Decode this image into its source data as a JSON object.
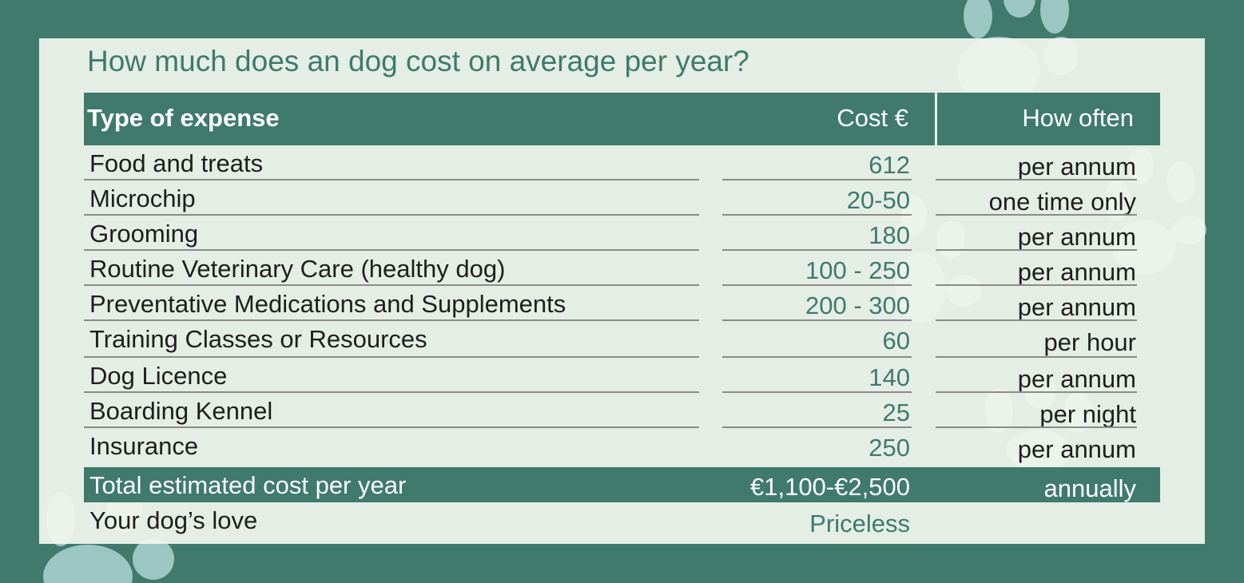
{
  "title": "How much does an dog cost on average per year?",
  "columns": {
    "type": "Type of expense",
    "cost": "Cost €",
    "often": "How often"
  },
  "rows": [
    {
      "type": "Food and treats",
      "cost": "612",
      "often": "per annum"
    },
    {
      "type": "Microchip",
      "cost": "20-50",
      "often": "one time only"
    },
    {
      "type": "Grooming",
      "cost": "180",
      "often": "per annum"
    },
    {
      "type": "Routine Veterinary Care (healthy dog)",
      "cost": "100 - 250",
      "often": "per annum"
    },
    {
      "type": "Preventative Medications and Supplements",
      "cost": "200 - 300",
      "often": "per annum"
    },
    {
      "type": "Training Classes or Resources",
      "cost": "60",
      "often": "per hour"
    },
    {
      "type": "Dog Licence",
      "cost": "140",
      "often": "per annum"
    },
    {
      "type": "Boarding Kennel",
      "cost": "25",
      "often": "per night"
    },
    {
      "type": "Insurance",
      "cost": "250",
      "often": "per annum"
    }
  ],
  "total": {
    "type": "Total estimated cost per year",
    "cost": "€1,100-€2,500",
    "often": "annually"
  },
  "love": {
    "type": "Your dog’s love",
    "cost": "Priceless"
  },
  "colors": {
    "brand": "#3f7a6d",
    "card": "#f1f6ee",
    "paw": "#9cc6c2",
    "text": "#1e1e1e"
  },
  "icons": {
    "decoration": "paw-print-icon"
  }
}
